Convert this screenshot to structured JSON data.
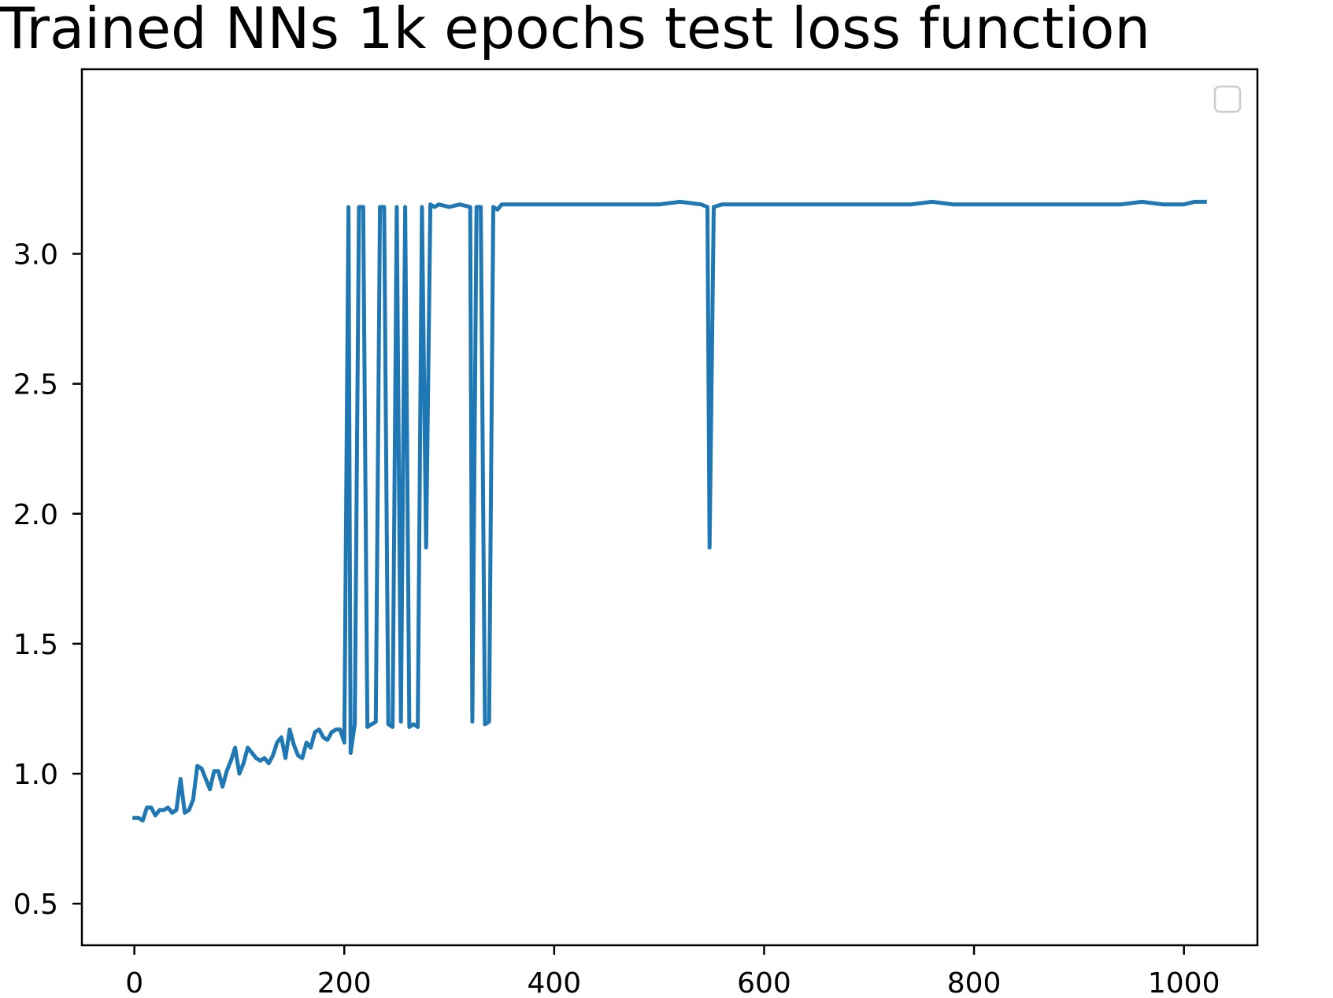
{
  "chart_data": {
    "type": "line",
    "title": "Trained NNs 1k epochs test loss function",
    "xlabel": "",
    "ylabel": "",
    "xlim": [
      -50,
      1070
    ],
    "ylim": [
      0.34,
      3.71
    ],
    "grid": false,
    "legend": {
      "placement": "top-right",
      "entries": []
    },
    "x_ticks": [
      0,
      200,
      400,
      600,
      800,
      1000
    ],
    "x_tick_labels": [
      "0",
      "200",
      "400",
      "600",
      "800",
      "1000"
    ],
    "y_ticks": [
      0.5,
      1.0,
      1.5,
      2.0,
      2.5,
      3.0
    ],
    "y_tick_labels": [
      "0.5",
      "1.0",
      "1.5",
      "2.0",
      "2.5",
      "3.0"
    ],
    "series": [
      {
        "color": "#1f77b4",
        "x": [
          0,
          4,
          8,
          12,
          16,
          20,
          24,
          28,
          32,
          36,
          40,
          44,
          48,
          52,
          56,
          60,
          64,
          68,
          72,
          76,
          80,
          84,
          88,
          92,
          96,
          100,
          104,
          108,
          112,
          116,
          120,
          124,
          128,
          132,
          136,
          140,
          144,
          148,
          152,
          156,
          160,
          164,
          168,
          172,
          176,
          180,
          184,
          188,
          192,
          196,
          200,
          204,
          206,
          210,
          214,
          218,
          222,
          226,
          230,
          234,
          238,
          242,
          246,
          250,
          254,
          258,
          262,
          266,
          270,
          274,
          278,
          282,
          286,
          290,
          300,
          310,
          320,
          322,
          326,
          330,
          334,
          338,
          342,
          346,
          350,
          360,
          380,
          400,
          420,
          440,
          460,
          480,
          500,
          520,
          540,
          546,
          548,
          552,
          560,
          580,
          600,
          620,
          640,
          660,
          680,
          700,
          720,
          740,
          760,
          780,
          800,
          820,
          840,
          860,
          880,
          900,
          920,
          940,
          960,
          980,
          1000,
          1010,
          1020
        ],
        "y": [
          0.83,
          0.83,
          0.82,
          0.87,
          0.87,
          0.84,
          0.86,
          0.86,
          0.87,
          0.85,
          0.86,
          0.98,
          0.85,
          0.86,
          0.9,
          1.03,
          1.02,
          0.98,
          0.94,
          1.01,
          1.01,
          0.95,
          1.01,
          1.05,
          1.1,
          1.0,
          1.04,
          1.1,
          1.08,
          1.06,
          1.05,
          1.06,
          1.04,
          1.07,
          1.12,
          1.14,
          1.06,
          1.17,
          1.11,
          1.07,
          1.06,
          1.12,
          1.1,
          1.16,
          1.17,
          1.14,
          1.13,
          1.16,
          1.17,
          1.17,
          1.12,
          3.18,
          1.08,
          1.19,
          3.18,
          3.18,
          1.18,
          1.19,
          1.2,
          3.18,
          3.18,
          1.19,
          1.18,
          3.18,
          1.2,
          3.18,
          1.18,
          1.19,
          1.18,
          3.18,
          1.87,
          3.19,
          3.18,
          3.19,
          3.18,
          3.19,
          3.18,
          1.2,
          3.18,
          3.18,
          1.19,
          1.2,
          3.18,
          3.17,
          3.19,
          3.19,
          3.19,
          3.19,
          3.19,
          3.19,
          3.19,
          3.19,
          3.19,
          3.2,
          3.19,
          3.18,
          1.87,
          3.18,
          3.19,
          3.19,
          3.19,
          3.19,
          3.19,
          3.19,
          3.19,
          3.19,
          3.19,
          3.19,
          3.2,
          3.19,
          3.19,
          3.19,
          3.19,
          3.19,
          3.19,
          3.19,
          3.19,
          3.19,
          3.2,
          3.19,
          3.19,
          3.2,
          3.2
        ]
      }
    ]
  }
}
